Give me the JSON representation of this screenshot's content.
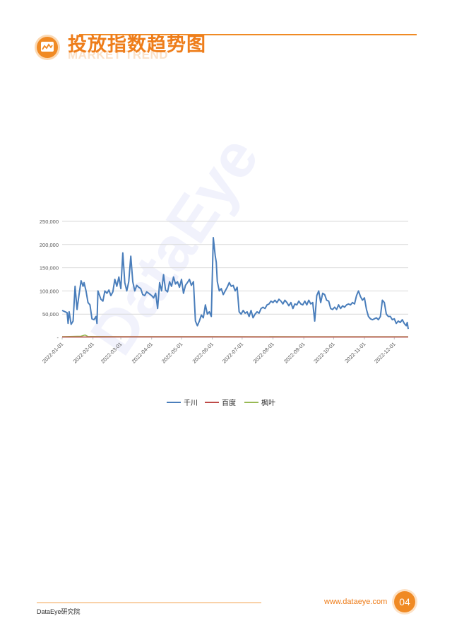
{
  "header": {
    "title": "投放指数趋势图",
    "subtitle": "MARKET TREND",
    "logo_icon": "bar-chart-icon",
    "accent_color": "#f08a24"
  },
  "watermark": "DataEye",
  "footer": {
    "org": "DataEye研究院",
    "url": "www.dataeye.com",
    "page_number": "04"
  },
  "chart_data": {
    "type": "line",
    "x_start": "2022-01-01",
    "x_end": "2022-12-15",
    "x_ticks": [
      "2022-01-01",
      "2022-02-01",
      "2022-03-01",
      "2022-04-01",
      "2022-05-01",
      "2022-06-01",
      "2022-07-01",
      "2022-08-01",
      "2022-09-01",
      "2022-10-01",
      "2022-11-01",
      "2022-12-01"
    ],
    "y_ticks": [
      "-",
      "50,000",
      "100,000",
      "150,000",
      "200,000",
      "250,000"
    ],
    "ylim": [
      0,
      250000
    ],
    "grid": true,
    "legend_position": "bottom",
    "series": [
      {
        "name": "千川",
        "color": "#4a7ebb",
        "points": [
          [
            "2022-01-01",
            58000
          ],
          [
            "2022-01-04",
            55000
          ],
          [
            "2022-01-06",
            53000
          ],
          [
            "2022-01-07",
            30000
          ],
          [
            "2022-01-08",
            55000
          ],
          [
            "2022-01-10",
            28000
          ],
          [
            "2022-01-12",
            35000
          ],
          [
            "2022-01-14",
            110000
          ],
          [
            "2022-01-16",
            60000
          ],
          [
            "2022-01-18",
            92000
          ],
          [
            "2022-01-20",
            122000
          ],
          [
            "2022-01-22",
            110000
          ],
          [
            "2022-01-23",
            118000
          ],
          [
            "2022-01-25",
            100000
          ],
          [
            "2022-01-27",
            75000
          ],
          [
            "2022-01-29",
            70000
          ],
          [
            "2022-01-31",
            40000
          ],
          [
            "2022-02-02",
            38000
          ],
          [
            "2022-02-04",
            45000
          ],
          [
            "2022-02-05",
            30000
          ],
          [
            "2022-02-06",
            100000
          ],
          [
            "2022-02-09",
            82000
          ],
          [
            "2022-02-11",
            78000
          ],
          [
            "2022-02-13",
            100000
          ],
          [
            "2022-02-15",
            95000
          ],
          [
            "2022-02-17",
            102000
          ],
          [
            "2022-02-19",
            90000
          ],
          [
            "2022-02-21",
            98000
          ],
          [
            "2022-02-23",
            125000
          ],
          [
            "2022-02-25",
            110000
          ],
          [
            "2022-02-27",
            130000
          ],
          [
            "2022-03-01",
            105000
          ],
          [
            "2022-03-03",
            182000
          ],
          [
            "2022-03-05",
            118000
          ],
          [
            "2022-03-07",
            100000
          ],
          [
            "2022-03-09",
            120000
          ],
          [
            "2022-03-11",
            175000
          ],
          [
            "2022-03-13",
            120000
          ],
          [
            "2022-03-15",
            100000
          ],
          [
            "2022-03-17",
            112000
          ],
          [
            "2022-03-19",
            108000
          ],
          [
            "2022-03-21",
            105000
          ],
          [
            "2022-03-23",
            92000
          ],
          [
            "2022-03-25",
            90000
          ],
          [
            "2022-03-27",
            98000
          ],
          [
            "2022-03-29",
            95000
          ],
          [
            "2022-04-01",
            90000
          ],
          [
            "2022-04-03",
            85000
          ],
          [
            "2022-04-05",
            95000
          ],
          [
            "2022-04-07",
            62000
          ],
          [
            "2022-04-09",
            118000
          ],
          [
            "2022-04-11",
            100000
          ],
          [
            "2022-04-13",
            135000
          ],
          [
            "2022-04-15",
            102000
          ],
          [
            "2022-04-17",
            98000
          ],
          [
            "2022-04-19",
            120000
          ],
          [
            "2022-04-21",
            110000
          ],
          [
            "2022-04-23",
            130000
          ],
          [
            "2022-04-25",
            115000
          ],
          [
            "2022-04-27",
            120000
          ],
          [
            "2022-04-29",
            108000
          ],
          [
            "2022-05-01",
            125000
          ],
          [
            "2022-05-03",
            95000
          ],
          [
            "2022-05-05",
            112000
          ],
          [
            "2022-05-07",
            118000
          ],
          [
            "2022-05-09",
            125000
          ],
          [
            "2022-05-11",
            112000
          ],
          [
            "2022-05-13",
            120000
          ],
          [
            "2022-05-15",
            35000
          ],
          [
            "2022-05-17",
            25000
          ],
          [
            "2022-05-19",
            35000
          ],
          [
            "2022-05-21",
            48000
          ],
          [
            "2022-05-23",
            42000
          ],
          [
            "2022-05-25",
            70000
          ],
          [
            "2022-05-27",
            50000
          ],
          [
            "2022-05-29",
            55000
          ],
          [
            "2022-05-31",
            45000
          ],
          [
            "2022-06-02",
            215000
          ],
          [
            "2022-06-04",
            175000
          ],
          [
            "2022-06-05",
            162000
          ],
          [
            "2022-06-06",
            120000
          ],
          [
            "2022-06-08",
            100000
          ],
          [
            "2022-06-10",
            105000
          ],
          [
            "2022-06-12",
            92000
          ],
          [
            "2022-06-14",
            100000
          ],
          [
            "2022-06-16",
            108000
          ],
          [
            "2022-06-18",
            118000
          ],
          [
            "2022-06-20",
            110000
          ],
          [
            "2022-06-22",
            112000
          ],
          [
            "2022-06-24",
            100000
          ],
          [
            "2022-06-26",
            108000
          ],
          [
            "2022-06-28",
            55000
          ],
          [
            "2022-06-30",
            50000
          ],
          [
            "2022-07-02",
            58000
          ],
          [
            "2022-07-04",
            52000
          ],
          [
            "2022-07-06",
            55000
          ],
          [
            "2022-07-08",
            45000
          ],
          [
            "2022-07-10",
            58000
          ],
          [
            "2022-07-12",
            42000
          ],
          [
            "2022-07-14",
            50000
          ],
          [
            "2022-07-16",
            55000
          ],
          [
            "2022-07-18",
            52000
          ],
          [
            "2022-07-20",
            62000
          ],
          [
            "2022-07-22",
            65000
          ],
          [
            "2022-07-24",
            62000
          ],
          [
            "2022-07-26",
            70000
          ],
          [
            "2022-07-28",
            72000
          ],
          [
            "2022-07-30",
            78000
          ],
          [
            "2022-08-01",
            75000
          ],
          [
            "2022-08-03",
            80000
          ],
          [
            "2022-08-05",
            75000
          ],
          [
            "2022-08-07",
            82000
          ],
          [
            "2022-08-09",
            78000
          ],
          [
            "2022-08-11",
            72000
          ],
          [
            "2022-08-13",
            80000
          ],
          [
            "2022-08-15",
            75000
          ],
          [
            "2022-08-17",
            68000
          ],
          [
            "2022-08-19",
            75000
          ],
          [
            "2022-08-21",
            62000
          ],
          [
            "2022-08-23",
            72000
          ],
          [
            "2022-08-25",
            70000
          ],
          [
            "2022-08-27",
            78000
          ],
          [
            "2022-08-29",
            72000
          ],
          [
            "2022-08-31",
            70000
          ],
          [
            "2022-09-02",
            78000
          ],
          [
            "2022-09-04",
            70000
          ],
          [
            "2022-09-06",
            80000
          ],
          [
            "2022-09-08",
            72000
          ],
          [
            "2022-09-10",
            75000
          ],
          [
            "2022-09-12",
            35000
          ],
          [
            "2022-09-14",
            90000
          ],
          [
            "2022-09-16",
            100000
          ],
          [
            "2022-09-18",
            75000
          ],
          [
            "2022-09-20",
            95000
          ],
          [
            "2022-09-22",
            92000
          ],
          [
            "2022-09-24",
            80000
          ],
          [
            "2022-09-26",
            78000
          ],
          [
            "2022-09-28",
            62000
          ],
          [
            "2022-09-30",
            60000
          ],
          [
            "2022-10-02",
            65000
          ],
          [
            "2022-10-04",
            60000
          ],
          [
            "2022-10-06",
            70000
          ],
          [
            "2022-10-08",
            62000
          ],
          [
            "2022-10-10",
            68000
          ],
          [
            "2022-10-12",
            65000
          ],
          [
            "2022-10-14",
            70000
          ],
          [
            "2022-10-16",
            72000
          ],
          [
            "2022-10-18",
            70000
          ],
          [
            "2022-10-20",
            75000
          ],
          [
            "2022-10-22",
            72000
          ],
          [
            "2022-10-24",
            90000
          ],
          [
            "2022-10-26",
            100000
          ],
          [
            "2022-10-28",
            88000
          ],
          [
            "2022-10-30",
            80000
          ],
          [
            "2022-11-01",
            85000
          ],
          [
            "2022-11-03",
            60000
          ],
          [
            "2022-11-05",
            45000
          ],
          [
            "2022-11-07",
            40000
          ],
          [
            "2022-11-09",
            38000
          ],
          [
            "2022-11-11",
            40000
          ],
          [
            "2022-11-13",
            42000
          ],
          [
            "2022-11-15",
            38000
          ],
          [
            "2022-11-17",
            45000
          ],
          [
            "2022-11-19",
            80000
          ],
          [
            "2022-11-21",
            75000
          ],
          [
            "2022-11-23",
            50000
          ],
          [
            "2022-11-25",
            45000
          ],
          [
            "2022-11-27",
            45000
          ],
          [
            "2022-11-29",
            38000
          ],
          [
            "2022-12-01",
            40000
          ],
          [
            "2022-12-03",
            30000
          ],
          [
            "2022-12-05",
            35000
          ],
          [
            "2022-12-07",
            32000
          ],
          [
            "2022-12-09",
            38000
          ],
          [
            "2022-12-11",
            30000
          ],
          [
            "2022-12-13",
            25000
          ],
          [
            "2022-12-14",
            32000
          ],
          [
            "2022-12-15",
            18000
          ]
        ]
      },
      {
        "name": "百度",
        "color": "#be4b48",
        "points": [
          [
            "2022-01-01",
            800
          ],
          [
            "2022-03-01",
            900
          ],
          [
            "2022-06-01",
            900
          ],
          [
            "2022-09-01",
            800
          ],
          [
            "2022-12-15",
            700
          ]
        ]
      },
      {
        "name": "枫叶",
        "color": "#98b954",
        "points": [
          [
            "2022-01-01",
            1500
          ],
          [
            "2022-01-20",
            2500
          ],
          [
            "2022-01-24",
            5000
          ],
          [
            "2022-01-27",
            1800
          ],
          [
            "2022-03-01",
            1500
          ],
          [
            "2022-06-01",
            1500
          ],
          [
            "2022-09-01",
            1400
          ],
          [
            "2022-12-15",
            1300
          ]
        ]
      }
    ]
  }
}
